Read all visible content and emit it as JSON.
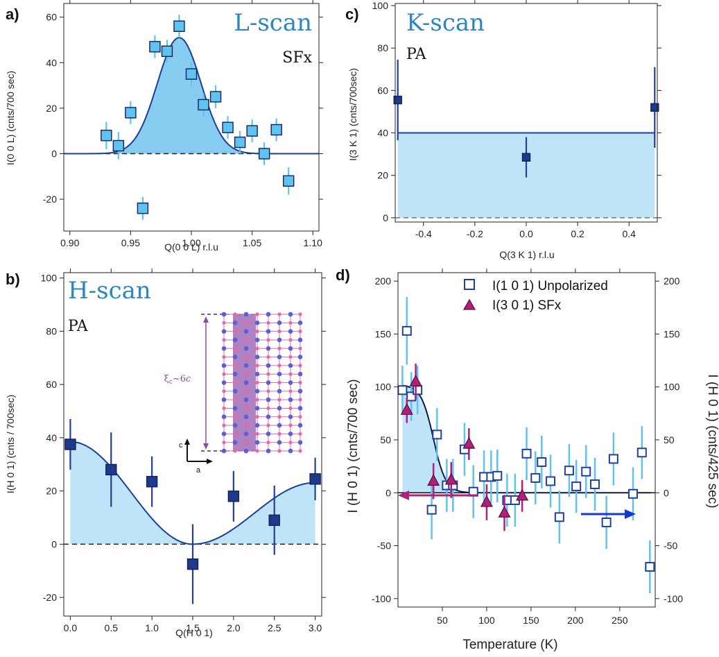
{
  "colors": {
    "title": "#2a86c6",
    "fill": "#bfe3f7",
    "fill_a": "#79c8f0",
    "line": "#1a3f9a",
    "marker_light": "#5fc3f0",
    "marker_dark": "#1f3a8a",
    "err_light": "#5fc3f0",
    "err_dark": "#1f3fa0",
    "magenta": "#b0207a",
    "blue_arrow": "#1437d8",
    "inset_pink": "#e46aa7",
    "inset_blue": "#5a5fd6",
    "inset_band": "#9b6fb8"
  },
  "chart_data": [
    {
      "panel": "a)",
      "type": "scatter",
      "title": "L-scan",
      "subtitle": "SFx",
      "xlabel": "Q(0 0 L) r.l.u",
      "ylabel": "I(0 0 L) (cnts/700 sec)",
      "xlim": [
        0.895,
        1.105
      ],
      "ylim": [
        -34,
        66
      ],
      "xticks": [
        0.9,
        0.95,
        1.0,
        1.05,
        1.1
      ],
      "xtick_labels": [
        "0.90",
        "0.95",
        "1.00",
        "1.05",
        "1.10"
      ],
      "yticks": [
        -20,
        0,
        20,
        40,
        60
      ],
      "ytick_labels": [
        "-20",
        "0",
        "20",
        "40",
        "60"
      ],
      "grid": false,
      "baseline": 0,
      "points": [
        {
          "x": 0.93,
          "y": 8,
          "err": 6
        },
        {
          "x": 0.94,
          "y": 3.5,
          "err": 6
        },
        {
          "x": 0.95,
          "y": 18,
          "err": 5
        },
        {
          "x": 0.96,
          "y": -24,
          "err": 5
        },
        {
          "x": 0.97,
          "y": 47,
          "err": 5
        },
        {
          "x": 0.98,
          "y": 45,
          "err": 5
        },
        {
          "x": 0.99,
          "y": 56,
          "err": 5
        },
        {
          "x": 1.0,
          "y": 35,
          "err": 5
        },
        {
          "x": 1.01,
          "y": 21.5,
          "err": 5
        },
        {
          "x": 1.02,
          "y": 25,
          "err": 5
        },
        {
          "x": 1.03,
          "y": 11.5,
          "err": 5
        },
        {
          "x": 1.04,
          "y": 5,
          "err": 5
        },
        {
          "x": 1.05,
          "y": 10,
          "err": 5
        },
        {
          "x": 1.06,
          "y": 0,
          "err": 5
        },
        {
          "x": 1.07,
          "y": 10.5,
          "err": 5
        },
        {
          "x": 1.08,
          "y": -12,
          "err": 6
        }
      ],
      "fit": {
        "type": "gaussian",
        "amplitude": 51,
        "center": 0.99,
        "sigma": 0.018
      }
    },
    {
      "panel": "b)",
      "type": "scatter",
      "title": "H-scan",
      "subtitle": "PA",
      "xlabel": "Q(H 0 1)",
      "ylabel": "I(H 0 1) (cnts / 700sec)",
      "xlim": [
        -0.08,
        3.08
      ],
      "ylim": [
        -27,
        102
      ],
      "xticks": [
        0,
        0.5,
        1,
        1.5,
        2,
        2.5,
        3
      ],
      "xtick_labels": [
        "0.0",
        "0.5",
        "1.0",
        "1.5",
        "2.0",
        "2.5",
        "3.0"
      ],
      "yticks": [
        -20,
        0,
        20,
        40,
        60,
        80,
        100
      ],
      "ytick_labels": [
        "-20",
        "0",
        "20",
        "40",
        "60",
        "80",
        "100"
      ],
      "grid": false,
      "baseline": 0,
      "points": [
        {
          "x": 0.0,
          "y": 37.5,
          "err": 9.5
        },
        {
          "x": 0.5,
          "y": 28,
          "err": 14
        },
        {
          "x": 1.0,
          "y": 23.5,
          "err": 9.5
        },
        {
          "x": 1.5,
          "y": -7.5,
          "err": 15
        },
        {
          "x": 2.0,
          "y": 18,
          "err": 9.5
        },
        {
          "x": 2.5,
          "y": 9,
          "err": 13
        },
        {
          "x": 3.0,
          "y": 24.5,
          "err": 8
        }
      ],
      "fit": {
        "type": "cosine",
        "amplitude": 38.5,
        "center": 1.5,
        "period": 3.0
      }
    },
    {
      "panel": "c)",
      "type": "scatter",
      "title": "K-scan",
      "subtitle": "PA",
      "xlabel": "Q(3 K 1) r.l.u",
      "ylabel": "I(3 K 1) (cnts/700sec)",
      "xlim": [
        -0.51,
        0.51
      ],
      "ylim": [
        -2,
        101
      ],
      "xticks": [
        -0.4,
        -0.2,
        0.0,
        0.2,
        0.4
      ],
      "xtick_labels": [
        "-0.4",
        "-0.2",
        "0.0",
        "0.2",
        "0.4"
      ],
      "yticks": [
        0,
        20,
        40,
        60,
        80,
        100
      ],
      "ytick_labels": [
        "0",
        "20",
        "40",
        "60",
        "80",
        "100"
      ],
      "grid": false,
      "baseline": 0,
      "points": [
        {
          "x": -0.5,
          "y": 55.5,
          "err": 19
        },
        {
          "x": 0.0,
          "y": 28.5,
          "err": 9.5
        },
        {
          "x": 0.5,
          "y": 52,
          "err": 19
        }
      ],
      "fit": {
        "type": "constant",
        "value": 40
      }
    },
    {
      "panel": "d)",
      "type": "scatter",
      "xlabel": "Temperature (K)",
      "ylabel": "I (H 0 1) (cnts/700 sec)",
      "ylabel_right": "I (H 0 1) (cnts/425 sec)",
      "xlim": [
        0,
        290
      ],
      "ylim": [
        -108,
        208
      ],
      "xticks": [
        50,
        100,
        150,
        200,
        250
      ],
      "xtick_labels": [
        "50",
        "100",
        "150",
        "200",
        "250"
      ],
      "yticks": [
        -100,
        -50,
        0,
        50,
        100,
        150,
        200
      ],
      "ytick_labels": [
        "-100",
        "-50",
        "0",
        "50",
        "100",
        "150",
        "200"
      ],
      "grid": false,
      "legend_position": "top-right",
      "series": [
        {
          "name": "I(1 0 1)  Unpolarized",
          "marker": "open-square",
          "points": [
            {
              "x": 5,
              "y": 97,
              "err": 23
            },
            {
              "x": 10,
              "y": 153,
              "err": 32
            },
            {
              "x": 15,
              "y": 91,
              "err": 23
            },
            {
              "x": 22,
              "y": 97,
              "err": 23
            },
            {
              "x": 38,
              "y": -16,
              "err": 28
            },
            {
              "x": 44,
              "y": 55,
              "err": 25
            },
            {
              "x": 55,
              "y": 7,
              "err": 25
            },
            {
              "x": 62,
              "y": 7,
              "err": 25
            },
            {
              "x": 75,
              "y": 41,
              "err": 25
            },
            {
              "x": 85,
              "y": 1,
              "err": 25
            },
            {
              "x": 97,
              "y": 15,
              "err": 25
            },
            {
              "x": 105,
              "y": 15,
              "err": 25
            },
            {
              "x": 112,
              "y": 16,
              "err": 25
            },
            {
              "x": 123,
              "y": -7,
              "err": 25
            },
            {
              "x": 132,
              "y": -7,
              "err": 25
            },
            {
              "x": 145,
              "y": 37,
              "err": 25
            },
            {
              "x": 155,
              "y": 14,
              "err": 25
            },
            {
              "x": 162,
              "y": 29,
              "err": 25
            },
            {
              "x": 172,
              "y": 11,
              "err": 25
            },
            {
              "x": 182,
              "y": -23,
              "err": 25
            },
            {
              "x": 193,
              "y": 21,
              "err": 25
            },
            {
              "x": 201,
              "y": 6,
              "err": 25
            },
            {
              "x": 212,
              "y": 20,
              "err": 25
            },
            {
              "x": 222,
              "y": 8,
              "err": 25
            },
            {
              "x": 235,
              "y": -28,
              "err": 25
            },
            {
              "x": 243,
              "y": 32,
              "err": 25
            },
            {
              "x": 265,
              "y": -1,
              "err": 25
            },
            {
              "x": 275,
              "y": 38,
              "err": 25
            },
            {
              "x": 284,
              "y": -70,
              "err": 25
            }
          ]
        },
        {
          "name": "I(3 0 1)  SFx",
          "marker": "filled-triangle",
          "points": [
            {
              "x": 10,
              "y": 78,
              "err": 12
            },
            {
              "x": 20,
              "y": 105,
              "err": 17
            },
            {
              "x": 40,
              "y": 11,
              "err": 17
            },
            {
              "x": 60,
              "y": 12,
              "err": 17
            },
            {
              "x": 80,
              "y": 46,
              "err": 15
            },
            {
              "x": 100,
              "y": -9,
              "err": 17
            },
            {
              "x": 120,
              "y": -19,
              "err": 17
            },
            {
              "x": 140,
              "y": -3,
              "err": 15
            }
          ]
        }
      ],
      "fit": {
        "type": "step",
        "plateau": 102,
        "t_onset": 18,
        "width": 22,
        "t_shade_max": 85
      }
    }
  ]
}
